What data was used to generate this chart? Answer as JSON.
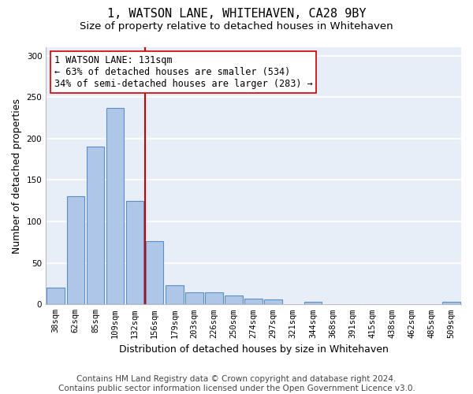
{
  "title": "1, WATSON LANE, WHITEHAVEN, CA28 9BY",
  "subtitle": "Size of property relative to detached houses in Whitehaven",
  "xlabel": "Distribution of detached houses by size in Whitehaven",
  "ylabel": "Number of detached properties",
  "footer_line1": "Contains HM Land Registry data © Crown copyright and database right 2024.",
  "footer_line2": "Contains public sector information licensed under the Open Government Licence v3.0.",
  "categories": [
    "38sqm",
    "62sqm",
    "85sqm",
    "109sqm",
    "132sqm",
    "156sqm",
    "179sqm",
    "203sqm",
    "226sqm",
    "250sqm",
    "274sqm",
    "297sqm",
    "321sqm",
    "344sqm",
    "368sqm",
    "391sqm",
    "415sqm",
    "438sqm",
    "462sqm",
    "485sqm",
    "509sqm"
  ],
  "values": [
    20,
    130,
    190,
    237,
    125,
    76,
    23,
    15,
    15,
    11,
    7,
    6,
    0,
    3,
    0,
    0,
    0,
    0,
    0,
    0,
    3
  ],
  "bar_color": "#aec6e8",
  "bar_edge_color": "#5a8fc2",
  "bar_edge_width": 0.8,
  "vline_index": 4,
  "vline_color": "#cc0000",
  "annotation_text_line1": "1 WATSON LANE: 131sqm",
  "annotation_text_line2": "← 63% of detached houses are smaller (534)",
  "annotation_text_line3": "34% of semi-detached houses are larger (283) →",
  "annotation_box_color": "white",
  "annotation_box_edge_color": "#cc0000",
  "ylim": [
    0,
    310
  ],
  "yticks": [
    0,
    50,
    100,
    150,
    200,
    250,
    300
  ],
  "bg_color": "#e8eef8",
  "grid_color": "white",
  "title_fontsize": 11,
  "subtitle_fontsize": 9.5,
  "axis_label_fontsize": 9,
  "tick_fontsize": 7.5,
  "footer_fontsize": 7.5,
  "annotation_fontsize": 8.5
}
